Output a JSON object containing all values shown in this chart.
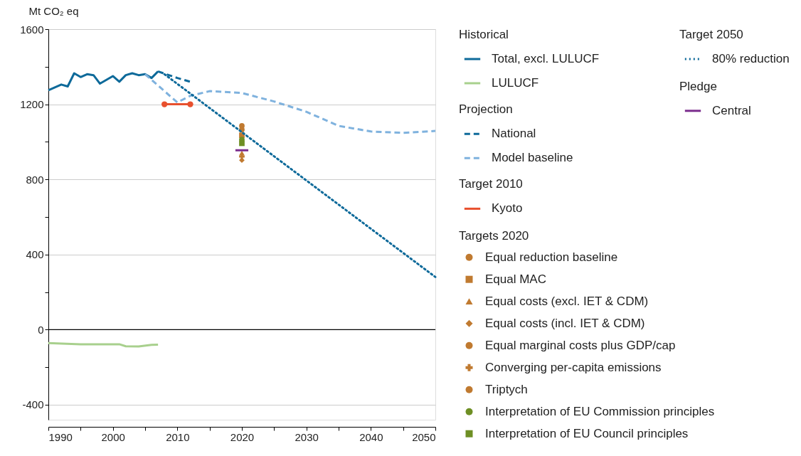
{
  "chart_data": {
    "type": "line",
    "ylabel": "Mt CO₂ eq",
    "xlim": [
      1990,
      2050
    ],
    "xticks": [
      1990,
      {
        "value": 1995,
        "label": null
      },
      2000,
      {
        "value": 2005,
        "label": null
      },
      2010,
      {
        "value": 2015,
        "label": null
      },
      2020,
      {
        "value": 2025,
        "label": null
      },
      2030,
      {
        "value": 2035,
        "label": null
      },
      2040,
      {
        "value": 2045,
        "label": null
      },
      2050
    ],
    "ylim": [
      -480,
      1600
    ],
    "yticks": [
      -400,
      {
        "value": -200,
        "label": null
      },
      0,
      {
        "value": 200,
        "label": null
      },
      400,
      {
        "value": 600,
        "label": null
      },
      800,
      {
        "value": 1000,
        "label": null
      },
      1200,
      {
        "value": 1400,
        "label": null
      },
      1600
    ],
    "grid": "y",
    "legend": "right",
    "legend_title": [
      "Historical",
      "Projection",
      "Target 2010",
      "Targets 2020",
      "Target 2050",
      "Pledge"
    ],
    "ref_lines": [
      {
        "axis": "y",
        "value": 0,
        "color": "#000000"
      }
    ],
    "series": [
      {
        "name": "Total, excl. LULUCF",
        "color": "#0e6a9a",
        "line_style": "solid",
        "x": [
          1990,
          1991,
          1992,
          1993,
          1994,
          1995,
          1996,
          1997,
          1998,
          1999,
          2000,
          2001,
          2002,
          2003,
          2004,
          2005,
          2006,
          2007
        ],
        "values": [
          1275,
          1290,
          1305,
          1295,
          1365,
          1345,
          1360,
          1355,
          1310,
          1330,
          1350,
          1320,
          1355,
          1365,
          1355,
          1360,
          1340,
          1375
        ]
      },
      {
        "name": "LULUCF",
        "color": "#a8d08d",
        "line_style": "solid",
        "x": [
          1990,
          1995,
          2001,
          2002,
          2004,
          2006,
          2007
        ],
        "values": [
          -72,
          -78,
          -78,
          -89,
          -90,
          -81,
          -80
        ]
      },
      {
        "name": "National",
        "color": "#0e6a9a",
        "line_style": "dashed",
        "x": [
          2007,
          2010,
          2012
        ],
        "values": [
          1375,
          1340,
          1320
        ]
      },
      {
        "name": "Model baseline",
        "color": "#7fb2de",
        "line_style": "dashed",
        "x": [
          2005,
          2010,
          2012,
          2015,
          2020,
          2025,
          2030,
          2035,
          2040,
          2045,
          2050
        ],
        "values": [
          1360,
          1210,
          1245,
          1270,
          1260,
          1215,
          1160,
          1085,
          1055,
          1048,
          1058
        ]
      },
      {
        "name": "Kyoto",
        "color": "#e8502e",
        "line_style": "solid",
        "marker": "circle",
        "x": [
          2008,
          2012
        ],
        "values": [
          1200,
          1200
        ]
      },
      {
        "name": "Equal reduction baseline",
        "type": "scatter",
        "marker": "circle",
        "color": "#c07a30",
        "x": [
          2020
        ],
        "values": [
          1085
        ]
      },
      {
        "name": "Equal MAC",
        "type": "scatter",
        "marker": "square",
        "color": "#c07a30",
        "x": [
          2020
        ],
        "values": [
          1035
        ]
      },
      {
        "name": "Equal costs (excl. IET & CDM)",
        "type": "scatter",
        "marker": "triangle",
        "color": "#c07a30",
        "x": [
          2020
        ],
        "values": [
          940
        ]
      },
      {
        "name": "Equal costs (incl. IET & CDM)",
        "type": "scatter",
        "marker": "diamond",
        "color": "#c07a30",
        "x": [
          2020
        ],
        "values": [
          902
        ]
      },
      {
        "name": "Equal marginal costs plus GDP/cap",
        "type": "scatter",
        "marker": "circle",
        "color": "#c07a30"
      },
      {
        "name": "Converging per-capita emissions",
        "type": "scatter",
        "marker": "cross",
        "color": "#c07a30",
        "x": [
          2020
        ],
        "values": [
          922
        ]
      },
      {
        "name": "Triptych",
        "type": "scatter",
        "marker": "circle",
        "color": "#c07a30",
        "x": [
          2020
        ],
        "values": [
          1065
        ]
      },
      {
        "name": "Interpretation of EU Commission principles",
        "type": "scatter",
        "marker": "circle",
        "color": "#6e8f24",
        "x": [
          2020
        ],
        "values": [
          1012
        ]
      },
      {
        "name": "Interpretation of EU Council principles",
        "type": "scatter",
        "marker": "square",
        "color": "#6e8f24",
        "x": [
          2020
        ],
        "values": [
          992
        ]
      },
      {
        "name": "80% reduction",
        "color": "#0e6a9a",
        "line_style": "dotted",
        "x": [
          2008,
          2050
        ],
        "values": [
          1360,
          280
        ]
      },
      {
        "name": "Central",
        "color": "#7b2d8e",
        "line_style": "solid",
        "x": [
          2019,
          2021
        ],
        "values": [
          955,
          955
        ]
      }
    ]
  }
}
